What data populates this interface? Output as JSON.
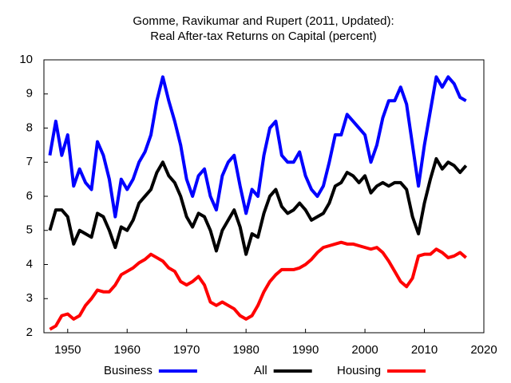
{
  "chart_data": {
    "type": "line",
    "title": [
      "Gomme, Ravikumar and Rupert (2011, Updated):",
      "Real After-tax Returns on Capital (percent)"
    ],
    "x": [
      1947,
      1948,
      1949,
      1950,
      1951,
      1952,
      1953,
      1954,
      1955,
      1956,
      1957,
      1958,
      1959,
      1960,
      1961,
      1962,
      1963,
      1964,
      1965,
      1966,
      1967,
      1968,
      1969,
      1970,
      1971,
      1972,
      1973,
      1974,
      1975,
      1976,
      1977,
      1978,
      1979,
      1980,
      1981,
      1982,
      1983,
      1984,
      1985,
      1986,
      1987,
      1988,
      1989,
      1990,
      1991,
      1992,
      1993,
      1994,
      1995,
      1996,
      1997,
      1998,
      1999,
      2000,
      2001,
      2002,
      2003,
      2004,
      2005,
      2006,
      2007,
      2008,
      2009,
      2010,
      2011,
      2012,
      2013,
      2014,
      2015,
      2016,
      2017
    ],
    "series": [
      {
        "name": "Business",
        "color": "#0000ff",
        "values": [
          7.2,
          8.2,
          7.2,
          7.8,
          6.3,
          6.8,
          6.4,
          6.2,
          7.6,
          7.2,
          6.5,
          5.4,
          6.5,
          6.2,
          6.5,
          7.0,
          7.3,
          7.8,
          8.8,
          9.5,
          8.8,
          8.2,
          7.5,
          6.5,
          6.0,
          6.6,
          6.8,
          6.0,
          5.6,
          6.6,
          7.0,
          7.2,
          6.3,
          5.5,
          6.2,
          6.0,
          7.2,
          8.0,
          8.2,
          7.2,
          7.0,
          7.0,
          7.3,
          6.6,
          6.2,
          6.0,
          6.3,
          7.0,
          7.8,
          7.8,
          8.4,
          8.2,
          8.0,
          7.8,
          7.0,
          7.5,
          8.3,
          8.8,
          8.8,
          9.2,
          8.7,
          7.5,
          6.3,
          7.5,
          8.5,
          9.5,
          9.2,
          9.5,
          9.3,
          8.9,
          8.8
        ]
      },
      {
        "name": "All",
        "color": "#000000",
        "values": [
          5.0,
          5.6,
          5.6,
          5.4,
          4.6,
          5.0,
          4.9,
          4.8,
          5.5,
          5.4,
          5.0,
          4.5,
          5.1,
          5.0,
          5.3,
          5.8,
          6.0,
          6.2,
          6.7,
          7.0,
          6.6,
          6.4,
          6.0,
          5.4,
          5.1,
          5.5,
          5.4,
          5.0,
          4.4,
          5.0,
          5.3,
          5.6,
          5.1,
          4.3,
          4.9,
          4.8,
          5.5,
          6.0,
          6.2,
          5.7,
          5.5,
          5.6,
          5.8,
          5.6,
          5.3,
          5.4,
          5.5,
          5.8,
          6.3,
          6.4,
          6.7,
          6.6,
          6.4,
          6.6,
          6.1,
          6.3,
          6.4,
          6.3,
          6.4,
          6.4,
          6.2,
          5.4,
          4.9,
          5.8,
          6.5,
          7.1,
          6.8,
          7.0,
          6.9,
          6.7,
          6.9
        ]
      },
      {
        "name": "Housing",
        "color": "#ff0000",
        "values": [
          2.1,
          2.2,
          2.5,
          2.55,
          2.4,
          2.5,
          2.8,
          3.0,
          3.25,
          3.2,
          3.2,
          3.4,
          3.7,
          3.8,
          3.9,
          4.05,
          4.15,
          4.3,
          4.2,
          4.1,
          3.9,
          3.8,
          3.5,
          3.4,
          3.5,
          3.65,
          3.4,
          2.9,
          2.8,
          2.9,
          2.8,
          2.7,
          2.5,
          2.4,
          2.5,
          2.8,
          3.2,
          3.5,
          3.7,
          3.85,
          3.85,
          3.85,
          3.9,
          4.0,
          4.15,
          4.35,
          4.5,
          4.55,
          4.6,
          4.65,
          4.6,
          4.6,
          4.55,
          4.5,
          4.45,
          4.5,
          4.35,
          4.1,
          3.8,
          3.5,
          3.35,
          3.6,
          4.25,
          4.3,
          4.3,
          4.45,
          4.35,
          4.2,
          4.25,
          4.35,
          4.2
        ]
      }
    ],
    "xlim": [
      1946,
      2020
    ],
    "xticks": [
      1950,
      1960,
      1970,
      1980,
      1990,
      2000,
      2010,
      2020
    ],
    "ylim": [
      2,
      10
    ],
    "yticks": [
      2,
      3,
      4,
      5,
      6,
      7,
      8,
      9,
      10
    ],
    "legend": "bottom"
  }
}
